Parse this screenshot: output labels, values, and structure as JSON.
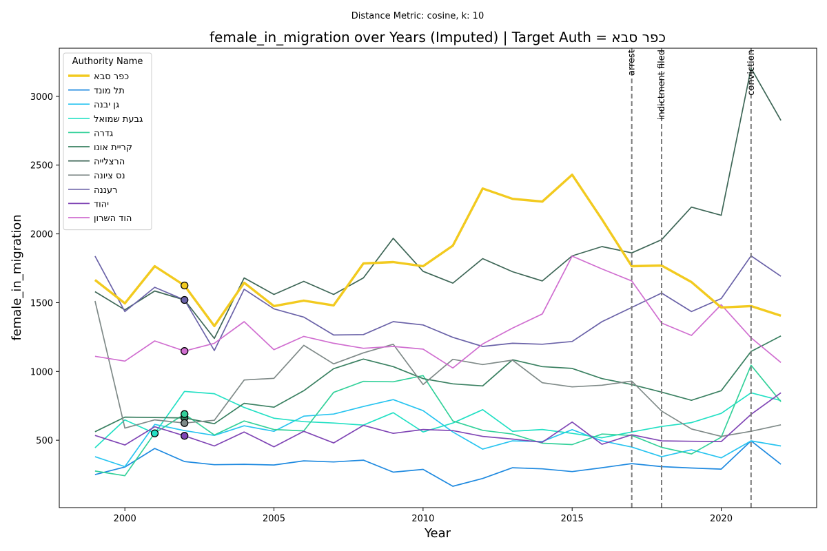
{
  "chart_data": {
    "type": "line",
    "suptitle": "Distance Metric: cosine, k: 10",
    "title": "female_in_migration over Years (Imputed) | Target Auth = כפר סבא",
    "xlabel": "Year",
    "ylabel": "female_in_migration",
    "xlim": [
      1997.8,
      2023.2
    ],
    "ylim": [
      10,
      3350
    ],
    "xticks": [
      2000,
      2005,
      2010,
      2015,
      2020
    ],
    "yticks": [
      500,
      1000,
      1500,
      2000,
      2500,
      3000
    ],
    "grid": false,
    "legend": {
      "title": "Authority Name",
      "placement": "top-left"
    },
    "x": [
      1999,
      2000,
      2001,
      2002,
      2003,
      2004,
      2005,
      2006,
      2007,
      2008,
      2009,
      2010,
      2011,
      2012,
      2013,
      2014,
      2015,
      2016,
      2017,
      2018,
      2019,
      2020,
      2021,
      2022
    ],
    "series": [
      {
        "name": "כפר סבא",
        "color": "#f2ca1f",
        "target": true,
        "values": [
          1665,
          1495,
          1765,
          1625,
          1330,
          1645,
          1475,
          1515,
          1480,
          1785,
          1795,
          1765,
          1915,
          2330,
          2255,
          2235,
          2430,
          2105,
          1765,
          1770,
          1650,
          1465,
          1475,
          1405
        ]
      },
      {
        "name": "תל מונד",
        "color": "#1f8ae0",
        "values": [
          250,
          305,
          440,
          345,
          322,
          325,
          320,
          350,
          342,
          355,
          268,
          288,
          165,
          222,
          300,
          292,
          272,
          300,
          330,
          308,
          298,
          290,
          495,
          325
        ]
      },
      {
        "name": "גן יבנה",
        "color": "#28c4f0",
        "values": [
          380,
          308,
          615,
          570,
          535,
          605,
          565,
          675,
          690,
          745,
          795,
          715,
          560,
          435,
          495,
          490,
          577,
          495,
          450,
          380,
          430,
          372,
          495,
          458
        ]
      },
      {
        "name": "גבעת שמואל",
        "color": "#22e0c4",
        "values": [
          445,
          648,
          550,
          855,
          838,
          738,
          660,
          635,
          625,
          610,
          700,
          560,
          625,
          722,
          565,
          578,
          550,
          518,
          560,
          600,
          628,
          695,
          845,
          788
        ]
      },
      {
        "name": "גדרה",
        "color": "#33d19a",
        "values": [
          276,
          242,
          552,
          690,
          538,
          640,
          578,
          568,
          848,
          928,
          925,
          970,
          640,
          572,
          545,
          478,
          468,
          545,
          535,
          448,
          400,
          522,
          1045,
          780
        ]
      },
      {
        "name": "קריית אונו",
        "color": "#3a8061",
        "values": [
          562,
          668,
          665,
          662,
          620,
          768,
          740,
          860,
          1020,
          1090,
          1035,
          948,
          910,
          895,
          1085,
          1035,
          1022,
          948,
          905,
          850,
          790,
          860,
          1145,
          1258
        ]
      },
      {
        "name": "הרצלייה",
        "color": "#3d6656",
        "values": [
          1580,
          1448,
          1585,
          1520,
          1240,
          1680,
          1560,
          1655,
          1560,
          1680,
          1968,
          1728,
          1642,
          1820,
          1725,
          1658,
          1840,
          1908,
          1862,
          1958,
          2195,
          2135,
          3205,
          2825
        ]
      },
      {
        "name": "נס ציונה",
        "color": "#7f8a88",
        "values": [
          1512,
          588,
          648,
          625,
          645,
          938,
          950,
          1190,
          1055,
          1135,
          1198,
          905,
          1088,
          1050,
          1082,
          918,
          888,
          900,
          930,
          712,
          582,
          528,
          565,
          612
        ]
      },
      {
        "name": "רעננה",
        "color": "#6a62a8",
        "values": [
          1838,
          1435,
          1612,
          1520,
          1152,
          1598,
          1455,
          1395,
          1265,
          1268,
          1362,
          1338,
          1248,
          1182,
          1205,
          1198,
          1218,
          1362,
          1465,
          1570,
          1435,
          1530,
          1840,
          1692
        ]
      },
      {
        "name": "יהוד",
        "color": "#8046b5",
        "values": [
          535,
          465,
          598,
          532,
          458,
          560,
          452,
          565,
          480,
          608,
          550,
          578,
          570,
          528,
          508,
          485,
          632,
          470,
          540,
          495,
          492,
          490,
          688,
          845
        ]
      },
      {
        "name": "הוד השרון",
        "color": "#d06ed0",
        "values": [
          1110,
          1075,
          1222,
          1148,
          1205,
          1362,
          1158,
          1255,
          1205,
          1168,
          1182,
          1162,
          1025,
          1200,
          1315,
          1418,
          1838,
          1745,
          1658,
          1352,
          1262,
          1485,
          1245,
          1065
        ]
      }
    ],
    "imputed_points": [
      {
        "series": "כפר סבא",
        "x": 2002,
        "y": 1625
      },
      {
        "series": "רעננה",
        "x": 2002,
        "y": 1520
      },
      {
        "series": "הוד השרון",
        "x": 2002,
        "y": 1148
      },
      {
        "series": "קריית אונו",
        "x": 2002,
        "y": 662
      },
      {
        "series": "גדרה",
        "x": 2002,
        "y": 690
      },
      {
        "series": "נס ציונה",
        "x": 2002,
        "y": 625
      },
      {
        "series": "יהוד",
        "x": 2002,
        "y": 532
      },
      {
        "series": "גבעת שמואל",
        "x": 2001,
        "y": 550
      }
    ],
    "events": [
      {
        "label": "arrest",
        "x": 2017
      },
      {
        "label": "indictment filed",
        "x": 2018
      },
      {
        "label": "conviction",
        "x": 2021
      }
    ]
  }
}
